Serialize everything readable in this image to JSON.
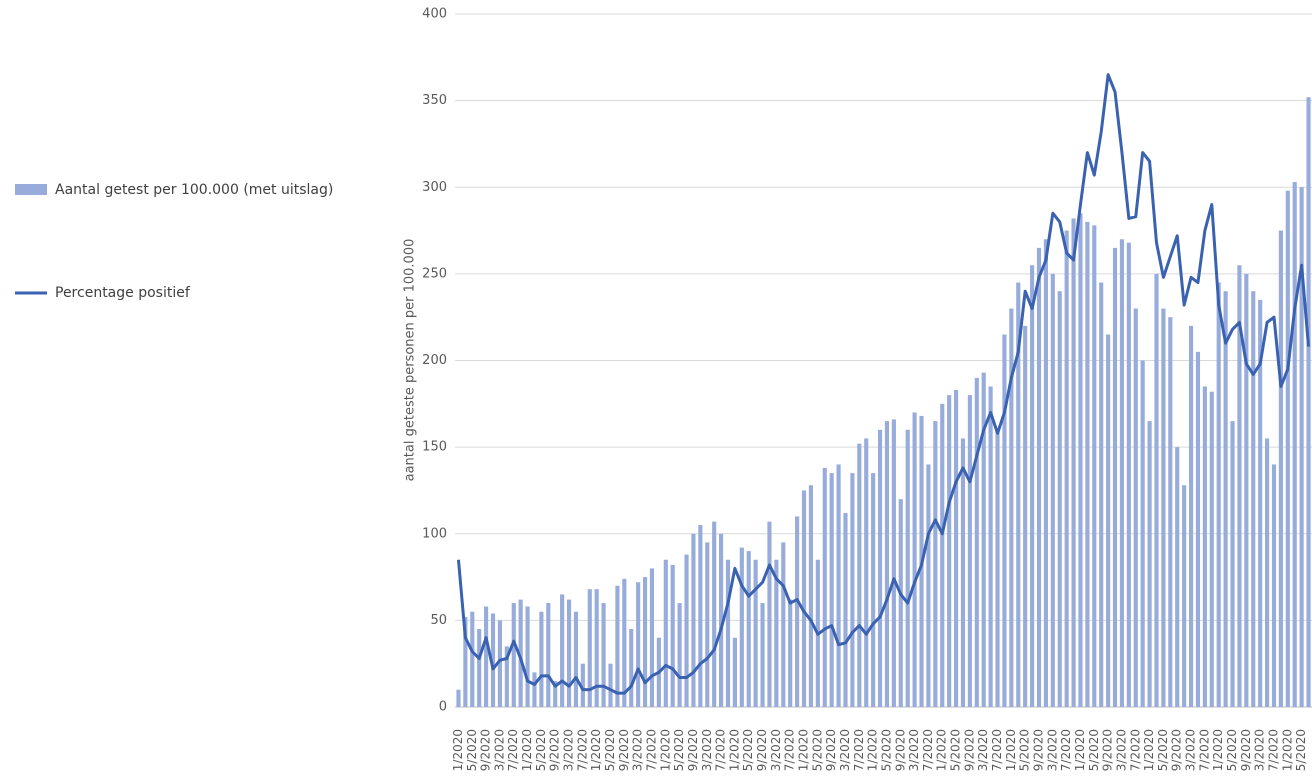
{
  "chart_data": {
    "type": "bar",
    "y_label": "aantal geteste personen per 100.000",
    "categories": [
      "1/2020",
      null,
      "5/2020",
      null,
      "9/2020",
      null,
      "3/2020",
      null,
      "7/2020",
      null,
      "1/2020",
      null,
      "5/2020",
      null,
      "9/2020",
      null,
      "3/2020",
      null,
      "7/2020",
      null,
      "1/2020",
      null,
      "5/2020",
      null,
      "9/2020",
      null,
      "3/2020",
      null,
      "7/2020",
      null,
      "1/2020",
      null,
      "5/2020",
      null,
      "9/2020",
      null,
      "3/2020",
      null,
      "7/2020",
      null,
      "1/2020",
      null,
      "5/2020",
      null,
      "9/2020",
      null,
      "3/2020",
      null,
      "7/2020",
      null,
      "1/2020",
      null,
      "5/2020",
      null,
      "9/2020",
      null,
      "3/2020",
      null,
      "7/2020",
      null,
      "1/2020",
      null,
      "5/2020",
      null,
      "9/2020",
      null,
      "3/2020",
      null,
      "7/2020",
      null,
      "1/2020",
      null,
      "5/2020",
      null,
      "9/2020",
      null,
      "3/2020",
      null,
      "7/2020",
      null,
      "1/2020",
      null,
      "5/2020",
      null,
      "9/2020",
      null,
      "3/2020",
      null,
      "7/2020",
      null,
      "1/2020",
      null,
      "5/2020",
      null,
      "9/2020",
      null,
      "3/2020",
      null,
      "7/2020",
      null,
      "1/2020",
      null,
      "5/2020",
      null,
      "9/2020",
      null,
      "3/2020",
      null,
      "7/2020",
      null,
      "1/2020",
      null,
      "5/2020",
      null,
      "9/2020",
      null,
      "3/2020",
      null,
      "7/2020",
      null,
      "1/2020",
      null,
      "5/2020",
      null
    ],
    "series": [
      {
        "name": "Aantal getest per 100.000 (met uitslag)",
        "type": "bar",
        "color": "#98acdc",
        "values": [
          10,
          52,
          55,
          45,
          58,
          54,
          50,
          35,
          60,
          62,
          58,
          20,
          55,
          60,
          15,
          65,
          62,
          55,
          25,
          68,
          68,
          60,
          25,
          70,
          74,
          45,
          72,
          75,
          80,
          40,
          85,
          82,
          60,
          88,
          100,
          105,
          95,
          107,
          100,
          85,
          40,
          92,
          90,
          85,
          60,
          107,
          85,
          95,
          62,
          110,
          125,
          128,
          85,
          138,
          135,
          140,
          112,
          135,
          152,
          155,
          135,
          160,
          165,
          166,
          120,
          160,
          170,
          168,
          140,
          165,
          175,
          180,
          183,
          155,
          180,
          190,
          193,
          185,
          160,
          215,
          230,
          245,
          220,
          255,
          265,
          270,
          250,
          240,
          275,
          282,
          285,
          280,
          278,
          245,
          215,
          265,
          270,
          268,
          230,
          200,
          165,
          250,
          230,
          225,
          150,
          128,
          220,
          205,
          185,
          182,
          245,
          240,
          165,
          255,
          250,
          240,
          235,
          155,
          140,
          275,
          298,
          303,
          300,
          352
        ]
      },
      {
        "name": "Percentage positief",
        "type": "line",
        "color": "#3a62b0",
        "values": [
          85,
          40,
          32,
          28,
          40,
          22,
          27,
          28,
          38,
          28,
          15,
          13,
          18,
          18,
          12,
          15,
          12,
          17,
          10,
          10,
          12,
          12,
          10,
          8,
          8,
          12,
          22,
          14,
          18,
          20,
          24,
          22,
          17,
          17,
          20,
          25,
          28,
          33,
          45,
          60,
          80,
          70,
          64,
          68,
          72,
          82,
          74,
          70,
          60,
          62,
          55,
          50,
          42,
          45,
          47,
          36,
          37,
          43,
          47,
          42,
          48,
          52,
          62,
          74,
          65,
          60,
          72,
          82,
          100,
          108,
          100,
          118,
          130,
          138,
          130,
          145,
          160,
          170,
          158,
          170,
          190,
          205,
          240,
          230,
          248,
          258,
          285,
          280,
          262,
          258,
          290,
          320,
          307,
          332,
          365,
          355,
          320,
          282,
          283,
          320,
          315,
          268,
          248,
          260,
          272,
          232,
          248,
          245,
          275,
          290,
          232,
          210,
          218,
          222,
          198,
          192,
          198,
          222,
          225,
          185,
          195,
          230,
          255,
          208
        ]
      }
    ],
    "ylim": [
      0,
      400
    ],
    "yticks": [
      0,
      50,
      100,
      150,
      200,
      250,
      300,
      350,
      400
    ],
    "grid": true
  }
}
